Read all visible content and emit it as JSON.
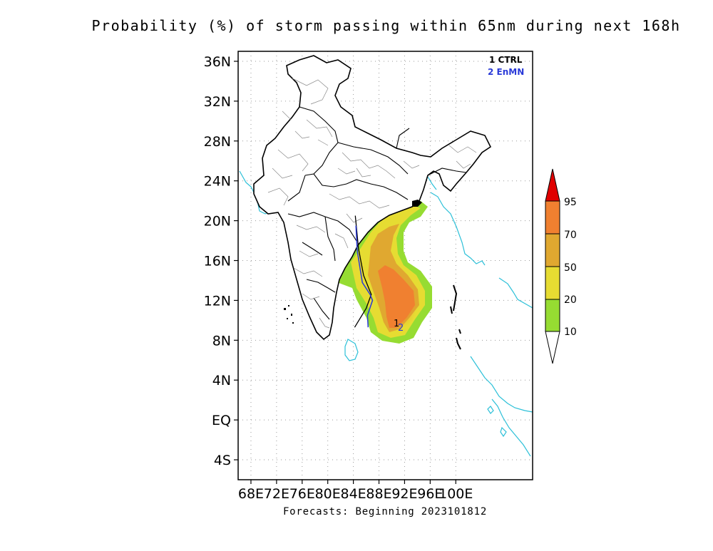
{
  "title": "Probability (%) of storm passing within 65nm during next 168h",
  "footer": "Forecasts: Beginning 2023101812",
  "map": {
    "lon_range": [
      66,
      112
    ],
    "lat_range": [
      -6,
      37
    ],
    "lat_ticks": [
      {
        "value": 36,
        "label": "36N"
      },
      {
        "value": 32,
        "label": "32N"
      },
      {
        "value": 28,
        "label": "28N"
      },
      {
        "value": 24,
        "label": "24N"
      },
      {
        "value": 20,
        "label": "20N"
      },
      {
        "value": 16,
        "label": "16N"
      },
      {
        "value": 12,
        "label": "12N"
      },
      {
        "value": 8,
        "label": "8N"
      },
      {
        "value": 4,
        "label": "4N"
      },
      {
        "value": 0,
        "label": "EQ"
      },
      {
        "value": -4,
        "label": "4S"
      }
    ],
    "lon_ticks": [
      {
        "value": 68,
        "label": "68E"
      },
      {
        "value": 72,
        "label": "72E"
      },
      {
        "value": 76,
        "label": "76E"
      },
      {
        "value": 80,
        "label": "80E"
      },
      {
        "value": 84,
        "label": "84E"
      },
      {
        "value": 88,
        "label": "88E"
      },
      {
        "value": 92,
        "label": "92E"
      },
      {
        "value": 96,
        "label": "96E"
      },
      {
        "value": 100,
        "label": "100E"
      }
    ],
    "grid": "dotted",
    "tracks": [
      {
        "id": "1",
        "name": "CTRL",
        "color": "#000000"
      },
      {
        "id": "2",
        "name": "EnMN",
        "color": "#2a3ad8"
      }
    ],
    "track_points": {
      "CTRL": [
        [
          84.3,
          20.5
        ],
        [
          84.8,
          17.2
        ],
        [
          85.6,
          14.5
        ],
        [
          86.8,
          12.6
        ],
        [
          86.0,
          11.2
        ],
        [
          84.2,
          9.3
        ]
      ],
      "EnMN": [
        [
          84.4,
          19.5
        ],
        [
          84.6,
          17.0
        ],
        [
          85.4,
          13.8
        ],
        [
          86.6,
          12.6
        ],
        [
          87.0,
          12.0
        ],
        [
          86.2,
          10.5
        ],
        [
          86.3,
          9.3
        ]
      ]
    }
  },
  "legend": {
    "levels": [
      "10",
      "20",
      "50",
      "70",
      "95"
    ],
    "colors": {
      "above_95": "#e00000",
      "70_95": "#f08030",
      "50_70": "#e0a830",
      "20_50": "#e6dc32",
      "10_20": "#96dc32",
      "below_10": "#ffffff"
    }
  },
  "colors": {
    "ocean_line": "#2cc0d8",
    "land_outline": "#000000",
    "district_line": "#888888",
    "grid": "#9a9a9a"
  }
}
